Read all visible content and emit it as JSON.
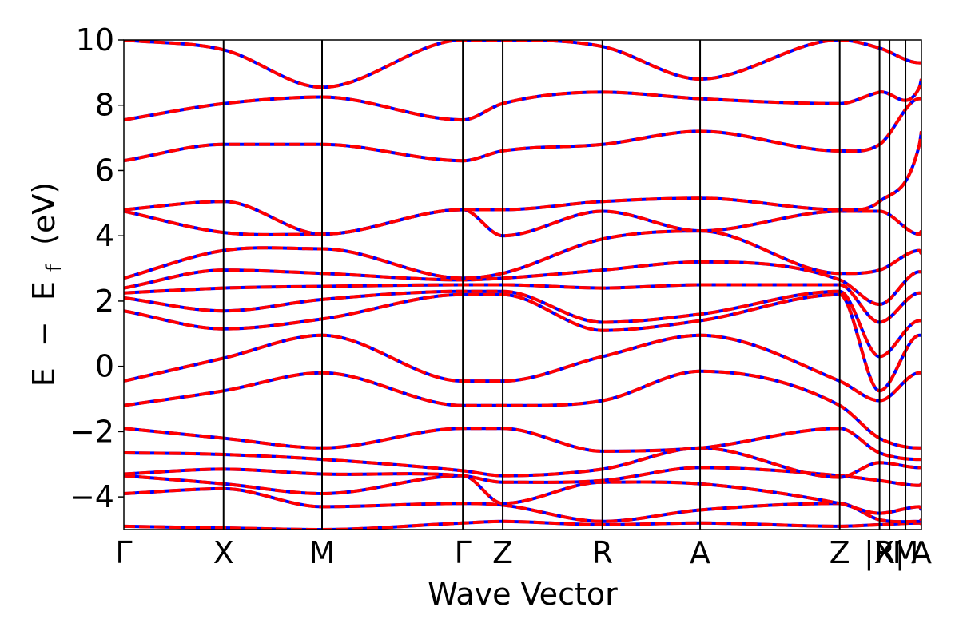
{
  "chart_data": {
    "type": "line",
    "title": "",
    "xlabel": "Wave Vector",
    "ylabel": {
      "E": "E",
      "minus": "−",
      "Ef_main": "E",
      "Ef_sub": "f",
      "unit": "(eV)"
    },
    "ylim": [
      -5,
      10
    ],
    "xlim": [
      0,
      20
    ],
    "grid": false,
    "legend": "none",
    "yticks": [
      {
        "value": -4,
        "label": "−4"
      },
      {
        "value": -2,
        "label": "−2"
      },
      {
        "value": 0,
        "label": "0"
      },
      {
        "value": 2,
        "label": "2"
      },
      {
        "value": 4,
        "label": "4"
      },
      {
        "value": 6,
        "label": "6"
      },
      {
        "value": 8,
        "label": "8"
      },
      {
        "value": 10,
        "label": "10"
      }
    ],
    "kpoints": [
      {
        "value": 0.0,
        "label": "Γ"
      },
      {
        "value": 2.5,
        "label": "X"
      },
      {
        "value": 4.97,
        "label": "M"
      },
      {
        "value": 8.5,
        "label": "Γ"
      },
      {
        "value": 9.5,
        "label": "Z"
      },
      {
        "value": 12.0,
        "label": "R"
      },
      {
        "value": 14.45,
        "label": "A"
      },
      {
        "value": 17.95,
        "label": "Z"
      },
      {
        "value": 18.95,
        "label": "|R"
      },
      {
        "value": 19.2,
        "label": "X|"
      },
      {
        "value": 19.6,
        "label": "M"
      },
      {
        "value": 20.0,
        "label": "A"
      }
    ],
    "segment_bounds": [
      0.0,
      2.5,
      4.97,
      8.5,
      9.5,
      12.0,
      14.45,
      17.95,
      18.95,
      19.95,
      20.0
    ],
    "series_colors": {
      "primary": "#ff0000",
      "secondary": "#0000ff"
    },
    "bands": [
      [
        -4.9,
        -4.95,
        -5.0,
        -4.8,
        -4.75,
        -4.85,
        -4.8,
        -4.9,
        -4.85,
        -4.8,
        -4.82
      ],
      [
        -3.9,
        -3.75,
        -4.3,
        -4.2,
        -4.25,
        -4.75,
        -4.4,
        -4.2,
        -4.7,
        -4.75,
        -4.7
      ],
      [
        -3.35,
        -3.6,
        -3.9,
        -3.35,
        -4.2,
        -3.55,
        -3.6,
        -4.2,
        -4.5,
        -4.3,
        -4.4
      ],
      [
        -3.3,
        -3.15,
        -3.3,
        -3.35,
        -3.55,
        -3.5,
        -3.1,
        -3.35,
        -3.5,
        -3.65,
        -3.6
      ],
      [
        -2.65,
        -2.7,
        -2.85,
        -3.2,
        -3.35,
        -3.15,
        -2.5,
        -3.4,
        -2.95,
        -3.1,
        -3.1
      ],
      [
        -1.9,
        -2.2,
        -2.5,
        -1.9,
        -1.9,
        -2.6,
        -2.5,
        -1.9,
        -2.65,
        -2.85,
        -2.85
      ],
      [
        -1.2,
        -0.75,
        -0.2,
        -1.2,
        -1.2,
        -1.05,
        -0.15,
        -1.2,
        -2.2,
        -2.5,
        -2.5
      ],
      [
        -0.45,
        0.25,
        0.95,
        -0.45,
        -0.45,
        0.3,
        0.95,
        -0.45,
        -1.05,
        -0.2,
        -0.2
      ],
      [
        1.7,
        1.15,
        1.45,
        2.2,
        2.2,
        1.1,
        1.4,
        2.2,
        -0.75,
        0.95,
        0.95
      ],
      [
        2.1,
        1.7,
        2.05,
        2.3,
        2.3,
        1.35,
        1.6,
        2.3,
        0.3,
        1.4,
        1.4
      ],
      [
        2.25,
        2.4,
        2.45,
        2.5,
        2.5,
        2.4,
        2.5,
        2.5,
        1.35,
        2.25,
        2.25
      ],
      [
        2.4,
        2.95,
        2.85,
        2.65,
        2.7,
        2.95,
        3.2,
        2.65,
        1.9,
        2.9,
        2.9
      ],
      [
        2.7,
        3.55,
        3.6,
        2.7,
        2.85,
        3.9,
        4.15,
        2.85,
        2.95,
        3.55,
        3.45
      ],
      [
        4.75,
        4.1,
        4.05,
        4.8,
        4.0,
        4.75,
        4.15,
        4.75,
        4.75,
        4.05,
        4.15
      ],
      [
        4.8,
        5.05,
        4.05,
        4.8,
        4.8,
        5.05,
        5.15,
        4.8,
        5.05,
        6.8,
        7.2
      ],
      [
        6.3,
        6.8,
        6.8,
        6.3,
        6.6,
        6.8,
        7.2,
        6.6,
        6.8,
        8.2,
        8.2
      ],
      [
        7.55,
        8.05,
        8.25,
        7.55,
        8.05,
        8.4,
        8.2,
        8.05,
        8.4,
        8.55,
        8.8
      ],
      [
        10.0,
        9.7,
        8.55,
        10.0,
        10.0,
        9.8,
        8.8,
        10.0,
        9.75,
        9.3,
        9.3
      ]
    ]
  }
}
